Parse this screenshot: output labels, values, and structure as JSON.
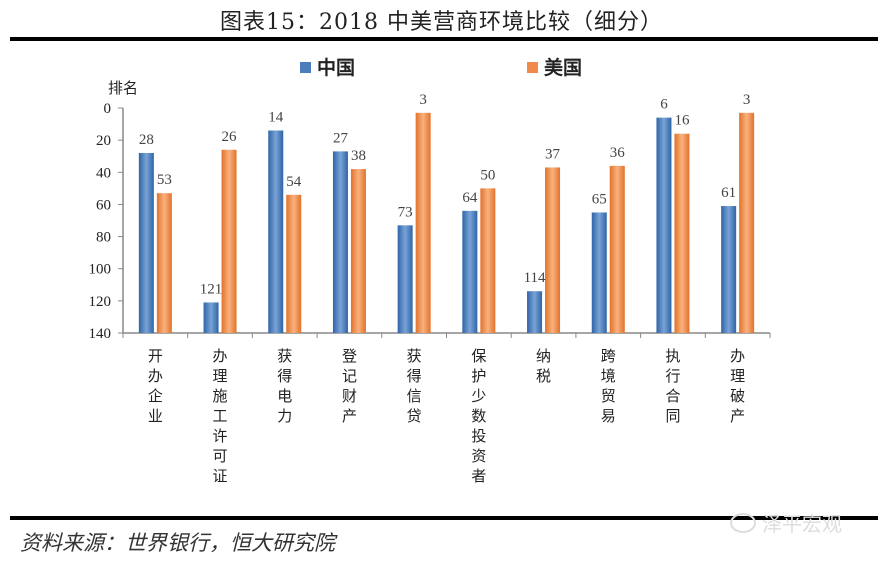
{
  "header": {
    "title": "图表15：2018 中美营商环境比较（细分）"
  },
  "footer": {
    "source": "资料来源：世界银行，恒大研究院",
    "watermark": "泽平宏观"
  },
  "chart_data": {
    "type": "bar",
    "orientation": "vertical-inverted",
    "title": "图表15：2018 中美营商环境比较（细分）",
    "xlabel": "",
    "ylabel": "排名",
    "ylim": [
      0,
      140
    ],
    "y_inverted": true,
    "yticks": [
      0,
      20,
      40,
      60,
      80,
      100,
      120,
      140
    ],
    "grid": false,
    "legend_position": "top",
    "categories": [
      "开办企业",
      "办理施工许可证",
      "获得电力",
      "登记财产",
      "获得信贷",
      "保护少数投资者",
      "纳税",
      "跨境贸易",
      "执行合同",
      "办理破产"
    ],
    "series": [
      {
        "name": "中国",
        "color": "#4a7ebb",
        "values": [
          28,
          121,
          14,
          27,
          73,
          64,
          114,
          65,
          6,
          61
        ]
      },
      {
        "name": "美国",
        "color": "#f08a4b",
        "values": [
          53,
          26,
          54,
          38,
          3,
          50,
          37,
          36,
          16,
          3
        ]
      }
    ]
  }
}
